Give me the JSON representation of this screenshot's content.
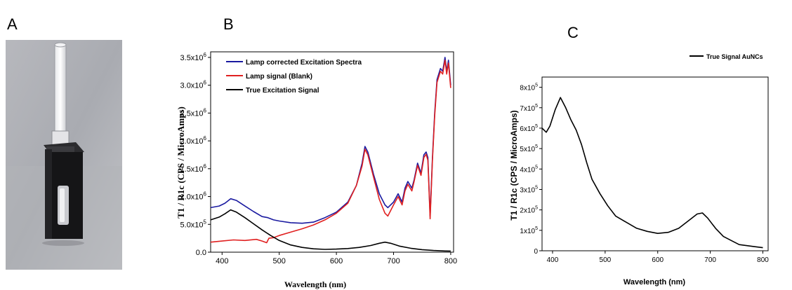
{
  "panels": {
    "a_label": "A",
    "b_label": "B",
    "c_label": "C"
  },
  "photo": {
    "subject": "cuvette-with-tube"
  },
  "chart_data": [
    {
      "id": "B",
      "type": "line",
      "title": "",
      "xlabel": "Wavelength (nm)",
      "ylabel": "T1 / R1c (CPS / MicroAmps)",
      "xlim": [
        380,
        805
      ],
      "ylim": [
        0,
        3600000
      ],
      "xticks": [
        400,
        500,
        600,
        700,
        800
      ],
      "yticks": [
        {
          "v": 0,
          "mant": "0.0",
          "exp": ""
        },
        {
          "v": 500000,
          "mant": "5.0x10",
          "exp": "5"
        },
        {
          "v": 1000000,
          "mant": "1.0x10",
          "exp": "6"
        },
        {
          "v": 1500000,
          "mant": "1.5x10",
          "exp": "6"
        },
        {
          "v": 2000000,
          "mant": "2.0x10",
          "exp": "6"
        },
        {
          "v": 2500000,
          "mant": "2.5x10",
          "exp": "6"
        },
        {
          "v": 3000000,
          "mant": "3.0x10",
          "exp": "6"
        },
        {
          "v": 3500000,
          "mant": "3.5x10",
          "exp": "6"
        }
      ],
      "legend_position": "top-left",
      "series": [
        {
          "name": "Lamp corrected Excitation Spectra",
          "color": "#1a1aa0",
          "points": [
            [
              380,
              800000
            ],
            [
              395,
              830000
            ],
            [
              405,
              880000
            ],
            [
              415,
              960000
            ],
            [
              425,
              930000
            ],
            [
              440,
              830000
            ],
            [
              455,
              730000
            ],
            [
              470,
              640000
            ],
            [
              480,
              620000
            ],
            [
              490,
              580000
            ],
            [
              500,
              560000
            ],
            [
              520,
              530000
            ],
            [
              540,
              520000
            ],
            [
              560,
              540000
            ],
            [
              580,
              620000
            ],
            [
              600,
              720000
            ],
            [
              620,
              900000
            ],
            [
              635,
              1200000
            ],
            [
              645,
              1600000
            ],
            [
              650,
              1900000
            ],
            [
              655,
              1800000
            ],
            [
              665,
              1400000
            ],
            [
              675,
              1050000
            ],
            [
              685,
              850000
            ],
            [
              690,
              800000
            ],
            [
              700,
              900000
            ],
            [
              708,
              1050000
            ],
            [
              715,
              900000
            ],
            [
              720,
              1150000
            ],
            [
              725,
              1270000
            ],
            [
              732,
              1150000
            ],
            [
              736,
              1300000
            ],
            [
              742,
              1600000
            ],
            [
              748,
              1420000
            ],
            [
              753,
              1750000
            ],
            [
              757,
              1800000
            ],
            [
              760,
              1700000
            ],
            [
              764,
              650000
            ],
            [
              768,
              1700000
            ],
            [
              772,
              2500000
            ],
            [
              776,
              3100000
            ],
            [
              782,
              3300000
            ],
            [
              786,
              3250000
            ],
            [
              790,
              3500000
            ],
            [
              793,
              3250000
            ],
            [
              796,
              3450000
            ],
            [
              800,
              3000000
            ]
          ]
        },
        {
          "name": "Lamp signal (Blank)",
          "color": "#e02020",
          "points": [
            [
              380,
              180000
            ],
            [
              400,
              200000
            ],
            [
              420,
              220000
            ],
            [
              440,
              210000
            ],
            [
              460,
              230000
            ],
            [
              470,
              200000
            ],
            [
              478,
              170000
            ],
            [
              482,
              250000
            ],
            [
              490,
              260000
            ],
            [
              500,
              300000
            ],
            [
              520,
              360000
            ],
            [
              540,
              420000
            ],
            [
              560,
              490000
            ],
            [
              580,
              580000
            ],
            [
              600,
              700000
            ],
            [
              620,
              880000
            ],
            [
              635,
              1200000
            ],
            [
              645,
              1550000
            ],
            [
              650,
              1850000
            ],
            [
              655,
              1750000
            ],
            [
              665,
              1350000
            ],
            [
              675,
              950000
            ],
            [
              685,
              700000
            ],
            [
              690,
              650000
            ],
            [
              700,
              850000
            ],
            [
              708,
              1000000
            ],
            [
              715,
              850000
            ],
            [
              720,
              1100000
            ],
            [
              725,
              1220000
            ],
            [
              732,
              1100000
            ],
            [
              736,
              1270000
            ],
            [
              742,
              1560000
            ],
            [
              748,
              1380000
            ],
            [
              753,
              1700000
            ],
            [
              757,
              1760000
            ],
            [
              760,
              1650000
            ],
            [
              764,
              600000
            ],
            [
              768,
              1650000
            ],
            [
              772,
              2450000
            ],
            [
              776,
              3050000
            ],
            [
              782,
              3250000
            ],
            [
              786,
              3200000
            ],
            [
              790,
              3450000
            ],
            [
              793,
              3200000
            ],
            [
              796,
              3400000
            ],
            [
              800,
              2950000
            ]
          ]
        },
        {
          "name": "True Excitation Signal",
          "color": "#000000",
          "points": [
            [
              380,
              580000
            ],
            [
              395,
              630000
            ],
            [
              405,
              690000
            ],
            [
              415,
              760000
            ],
            [
              425,
              720000
            ],
            [
              440,
              620000
            ],
            [
              455,
              510000
            ],
            [
              470,
              400000
            ],
            [
              485,
              300000
            ],
            [
              500,
              210000
            ],
            [
              520,
              130000
            ],
            [
              540,
              85000
            ],
            [
              560,
              60000
            ],
            [
              580,
              50000
            ],
            [
              600,
              55000
            ],
            [
              620,
              65000
            ],
            [
              640,
              85000
            ],
            [
              660,
              120000
            ],
            [
              675,
              160000
            ],
            [
              685,
              180000
            ],
            [
              695,
              160000
            ],
            [
              710,
              110000
            ],
            [
              730,
              70000
            ],
            [
              750,
              45000
            ],
            [
              770,
              30000
            ],
            [
              790,
              22000
            ],
            [
              800,
              20000
            ]
          ]
        }
      ]
    },
    {
      "id": "C",
      "type": "line",
      "title": "",
      "xlabel": "Wavelength (nm)",
      "ylabel": "T1 / R1c (CPS / MicroAmps)",
      "xlim": [
        380,
        810
      ],
      "ylim": [
        0,
        850000
      ],
      "xticks": [
        400,
        500,
        600,
        700,
        800
      ],
      "yticks": [
        {
          "v": 0,
          "mant": "0",
          "exp": ""
        },
        {
          "v": 100000,
          "mant": "1x10",
          "exp": "5"
        },
        {
          "v": 200000,
          "mant": "2x10",
          "exp": "5"
        },
        {
          "v": 300000,
          "mant": "3x10",
          "exp": "5"
        },
        {
          "v": 400000,
          "mant": "4x10",
          "exp": "5"
        },
        {
          "v": 500000,
          "mant": "5x10",
          "exp": "5"
        },
        {
          "v": 600000,
          "mant": "6x10",
          "exp": "5"
        },
        {
          "v": 700000,
          "mant": "7x10",
          "exp": "5"
        },
        {
          "v": 800000,
          "mant": "8x10",
          "exp": "5"
        }
      ],
      "legend_position": "top-right",
      "series": [
        {
          "name": "True Signal AuNCs",
          "color": "#000000",
          "points": [
            [
              380,
              600000
            ],
            [
              388,
              580000
            ],
            [
              395,
              610000
            ],
            [
              405,
              690000
            ],
            [
              415,
              750000
            ],
            [
              425,
              700000
            ],
            [
              435,
              640000
            ],
            [
              445,
              590000
            ],
            [
              455,
              520000
            ],
            [
              465,
              430000
            ],
            [
              475,
              350000
            ],
            [
              490,
              280000
            ],
            [
              505,
              220000
            ],
            [
              520,
              170000
            ],
            [
              540,
              140000
            ],
            [
              560,
              110000
            ],
            [
              580,
              95000
            ],
            [
              600,
              85000
            ],
            [
              620,
              90000
            ],
            [
              640,
              110000
            ],
            [
              660,
              150000
            ],
            [
              675,
              180000
            ],
            [
              685,
              185000
            ],
            [
              695,
              160000
            ],
            [
              710,
              110000
            ],
            [
              725,
              70000
            ],
            [
              740,
              50000
            ],
            [
              755,
              30000
            ],
            [
              770,
              25000
            ],
            [
              785,
              20000
            ],
            [
              800,
              15000
            ]
          ]
        }
      ]
    }
  ]
}
